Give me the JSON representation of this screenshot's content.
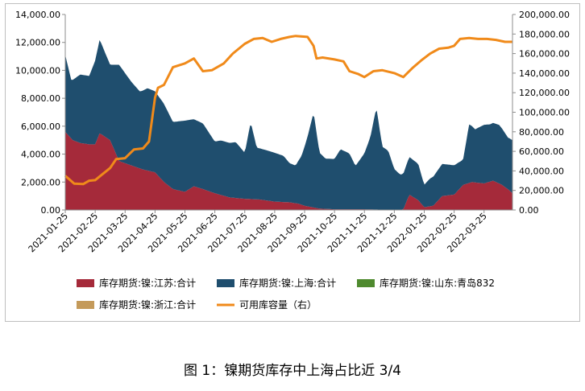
{
  "caption": "图 1：镍期货库存中上海占比近 3/4",
  "chart_data": {
    "type": "area",
    "x_tick_labels": [
      "2021-01-25",
      "2021-02-25",
      "2021-03-25",
      "2021-04-25",
      "2021-05-25",
      "2021-06-25",
      "2021-07-25",
      "2021-08-25",
      "2021-09-25",
      "2021-10-25",
      "2021-11-25",
      "2021-12-25",
      "2022-01-25",
      "2022-02-25",
      "2022-03-25"
    ],
    "x_range": [
      0,
      14.95
    ],
    "y_left": {
      "min": 0,
      "max": 14000,
      "ticks": [
        "0.00",
        "2,000.00",
        "4,000.00",
        "6,000.00",
        "8,000.00",
        "10,000.00",
        "12,000.00",
        "14,000.00"
      ]
    },
    "y_right": {
      "min": 0,
      "max": 200000,
      "ticks": [
        "0.00",
        "20,000.00",
        "40,000.00",
        "60,000.00",
        "80,000.00",
        "100,000.00",
        "120,000.00",
        "140,000.00",
        "160,000.00",
        "180,000.00",
        "200,000.00"
      ]
    },
    "legend_position": "bottom",
    "series": [
      {
        "name": "库存期货:镍:江苏:合计",
        "type": "area",
        "stack": true,
        "axis": "left",
        "color": "#a52a3a",
        "points": [
          [
            0,
            5600
          ],
          [
            0.25,
            5000
          ],
          [
            0.5,
            4800
          ],
          [
            0.8,
            4700
          ],
          [
            1.0,
            4700
          ],
          [
            1.15,
            5500
          ],
          [
            1.5,
            5000
          ],
          [
            1.8,
            3500
          ],
          [
            2.2,
            3200
          ],
          [
            2.6,
            2900
          ],
          [
            3.0,
            2700
          ],
          [
            3.3,
            2000
          ],
          [
            3.6,
            1500
          ],
          [
            4.0,
            1300
          ],
          [
            4.3,
            1700
          ],
          [
            4.6,
            1500
          ],
          [
            5.0,
            1200
          ],
          [
            5.5,
            900
          ],
          [
            6.0,
            800
          ],
          [
            6.5,
            750
          ],
          [
            7.0,
            600
          ],
          [
            7.5,
            550
          ],
          [
            7.8,
            450
          ],
          [
            8.0,
            300
          ],
          [
            8.5,
            100
          ],
          [
            9.0,
            50
          ],
          [
            9.5,
            50
          ],
          [
            10.0,
            50
          ],
          [
            10.5,
            30
          ],
          [
            11.0,
            30
          ],
          [
            11.3,
            30
          ],
          [
            11.5,
            1100
          ],
          [
            11.8,
            700
          ],
          [
            12.0,
            200
          ],
          [
            12.3,
            300
          ],
          [
            12.6,
            1000
          ],
          [
            13.0,
            1100
          ],
          [
            13.3,
            1800
          ],
          [
            13.6,
            2000
          ],
          [
            14.0,
            1900
          ],
          [
            14.3,
            2100
          ],
          [
            14.6,
            1800
          ],
          [
            14.85,
            1400
          ],
          [
            14.95,
            1200
          ]
        ]
      },
      {
        "name": "库存期货:镍:上海:合计",
        "type": "area",
        "stack": true,
        "axis": "left",
        "color": "#1f4e6e",
        "points": [
          [
            0,
            5500
          ],
          [
            0.2,
            4200
          ],
          [
            0.5,
            4900
          ],
          [
            0.8,
            4900
          ],
          [
            1.0,
            6000
          ],
          [
            1.15,
            6700
          ],
          [
            1.5,
            5400
          ],
          [
            1.8,
            6900
          ],
          [
            2.2,
            6000
          ],
          [
            2.5,
            5500
          ],
          [
            2.75,
            5900
          ],
          [
            3.0,
            5800
          ],
          [
            3.3,
            5600
          ],
          [
            3.6,
            4800
          ],
          [
            4.0,
            5100
          ],
          [
            4.3,
            4800
          ],
          [
            4.6,
            4700
          ],
          [
            5.0,
            3700
          ],
          [
            5.2,
            3900
          ],
          [
            5.5,
            3900
          ],
          [
            5.7,
            4000
          ],
          [
            6.0,
            3300
          ],
          [
            6.2,
            5500
          ],
          [
            6.4,
            3700
          ],
          [
            6.7,
            3600
          ],
          [
            7.0,
            3500
          ],
          [
            7.3,
            3300
          ],
          [
            7.5,
            2800
          ],
          [
            7.7,
            2700
          ],
          [
            7.9,
            3500
          ],
          [
            8.1,
            5000
          ],
          [
            8.3,
            6800
          ],
          [
            8.5,
            4000
          ],
          [
            8.7,
            3600
          ],
          [
            9.0,
            3600
          ],
          [
            9.2,
            4300
          ],
          [
            9.5,
            4000
          ],
          [
            9.7,
            3100
          ],
          [
            10.0,
            4000
          ],
          [
            10.2,
            5200
          ],
          [
            10.4,
            7300
          ],
          [
            10.6,
            4500
          ],
          [
            10.8,
            4200
          ],
          [
            11.0,
            2900
          ],
          [
            11.2,
            2500
          ],
          [
            11.5,
            2700
          ],
          [
            11.8,
            2600
          ],
          [
            12.0,
            1600
          ],
          [
            12.2,
            2000
          ],
          [
            12.6,
            2300
          ],
          [
            13.0,
            2100
          ],
          [
            13.3,
            1800
          ],
          [
            13.5,
            4200
          ],
          [
            13.7,
            3800
          ],
          [
            14.0,
            4200
          ],
          [
            14.2,
            4100
          ],
          [
            14.5,
            4200
          ],
          [
            14.8,
            3700
          ],
          [
            14.95,
            3800
          ]
        ]
      },
      {
        "name": "库存期货:镍:山东:青岛832",
        "type": "area",
        "stack": true,
        "axis": "left",
        "color": "#4f8a2f",
        "points": [
          [
            0,
            0
          ],
          [
            14.95,
            0
          ]
        ]
      },
      {
        "name": "库存期货:镍:浙江:合计",
        "type": "area",
        "stack": true,
        "axis": "left",
        "color": "#c49a5a",
        "points": [
          [
            0,
            0
          ],
          [
            14.95,
            0
          ]
        ]
      },
      {
        "name": "可用库容量（右）",
        "type": "line",
        "axis": "right",
        "color": "#f08a1a",
        "points": [
          [
            0,
            35000
          ],
          [
            0.3,
            27000
          ],
          [
            0.6,
            26500
          ],
          [
            0.8,
            30000
          ],
          [
            1.0,
            30500
          ],
          [
            1.3,
            38000
          ],
          [
            1.5,
            43000
          ],
          [
            1.7,
            52000
          ],
          [
            2.0,
            53000
          ],
          [
            2.3,
            62000
          ],
          [
            2.6,
            63000
          ],
          [
            2.8,
            70000
          ],
          [
            3.0,
            115000
          ],
          [
            3.1,
            125000
          ],
          [
            3.3,
            128000
          ],
          [
            3.6,
            146000
          ],
          [
            4.0,
            150000
          ],
          [
            4.3,
            155000
          ],
          [
            4.6,
            142000
          ],
          [
            4.9,
            143000
          ],
          [
            5.3,
            150000
          ],
          [
            5.6,
            160000
          ],
          [
            6.0,
            170000
          ],
          [
            6.3,
            175000
          ],
          [
            6.6,
            176000
          ],
          [
            6.9,
            172000
          ],
          [
            7.2,
            175000
          ],
          [
            7.5,
            177000
          ],
          [
            7.7,
            178000
          ],
          [
            8.1,
            177000
          ],
          [
            8.3,
            168000
          ],
          [
            8.4,
            155000
          ],
          [
            8.6,
            156000
          ],
          [
            9.0,
            154000
          ],
          [
            9.3,
            152000
          ],
          [
            9.5,
            142000
          ],
          [
            9.8,
            139000
          ],
          [
            10.0,
            136000
          ],
          [
            10.3,
            142000
          ],
          [
            10.6,
            143000
          ],
          [
            11.0,
            140000
          ],
          [
            11.3,
            136000
          ],
          [
            11.6,
            145000
          ],
          [
            11.9,
            153000
          ],
          [
            12.2,
            160000
          ],
          [
            12.5,
            165000
          ],
          [
            12.8,
            166000
          ],
          [
            13.0,
            168000
          ],
          [
            13.2,
            175000
          ],
          [
            13.5,
            176000
          ],
          [
            13.8,
            175000
          ],
          [
            14.1,
            175000
          ],
          [
            14.4,
            174000
          ],
          [
            14.7,
            172000
          ],
          [
            14.95,
            172000
          ]
        ]
      }
    ]
  }
}
